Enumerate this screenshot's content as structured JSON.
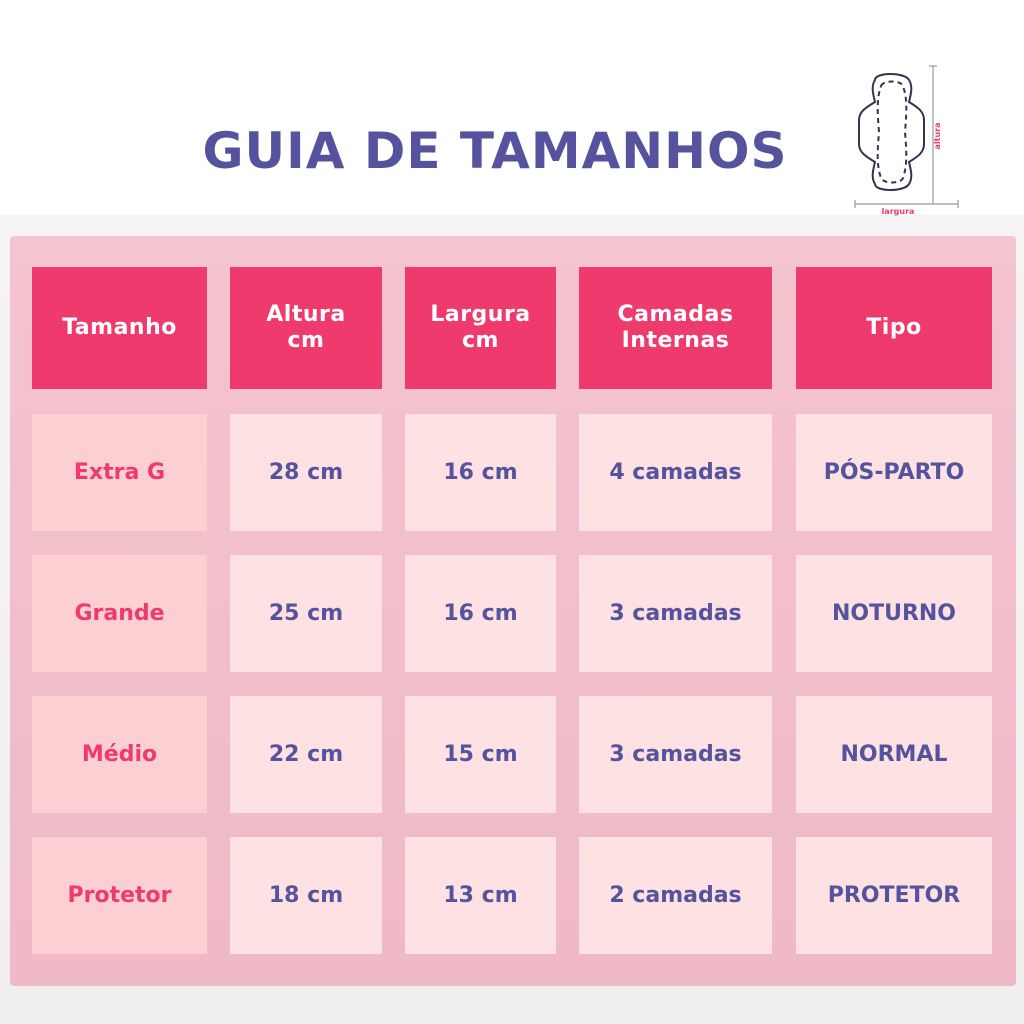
{
  "title": "GUIA DE TAMANHOS",
  "diagram": {
    "height_label": "altura",
    "width_label": "largura",
    "label_color": "#ee3a6c",
    "line_color": "#9a9a9a",
    "outline_color": "#3a3050"
  },
  "colors": {
    "title": "#56539e",
    "header_bg": "#ee3a6c",
    "header_text": "#ffffff",
    "size_cell_bg": "#fccfd3",
    "size_text": "#ee3a6c",
    "data_cell_bg": "#fde1e3",
    "data_text": "#56539e",
    "panel_bg": "#f4c4cf"
  },
  "table": {
    "headers": [
      "Tamanho",
      "Altura\ncm",
      "Largura\ncm",
      "Camadas\nInternas",
      "Tipo"
    ],
    "rows": [
      [
        "Extra G",
        "28 cm",
        "16 cm",
        "4 camadas",
        "PÓS-PARTO"
      ],
      [
        "Grande",
        "25 cm",
        "16 cm",
        "3 camadas",
        "NOTURNO"
      ],
      [
        "Médio",
        "22 cm",
        "15 cm",
        "3 camadas",
        "NORMAL"
      ],
      [
        "Protetor",
        "18 cm",
        "13 cm",
        "2 camadas",
        "PROTETOR"
      ]
    ]
  }
}
